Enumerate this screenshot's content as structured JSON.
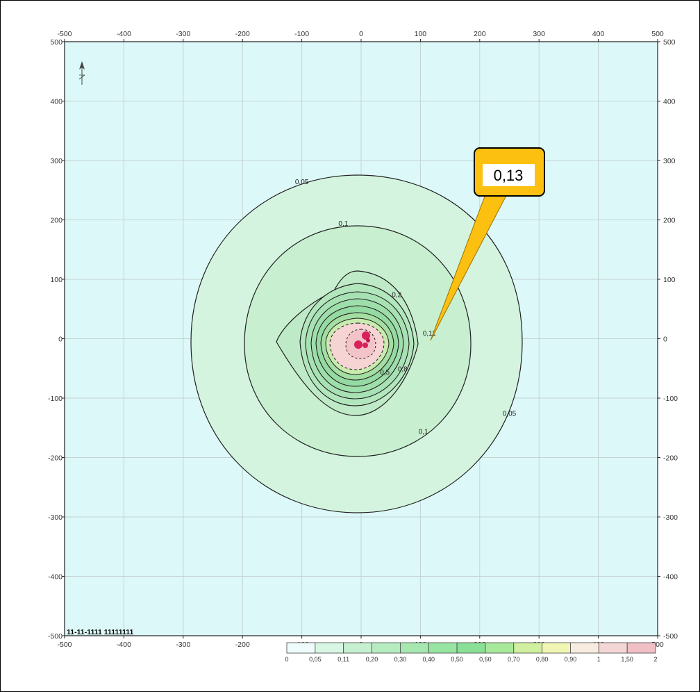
{
  "chart_data": {
    "type": "contour",
    "xlim": [
      -500,
      500
    ],
    "ylim": [
      -500,
      500
    ],
    "x_ticks": [
      "-500",
      "-400",
      "-300",
      "-200",
      "-100",
      "0",
      "100",
      "200",
      "300",
      "400",
      "500"
    ],
    "y_ticks": [
      "500",
      "400",
      "300",
      "200",
      "100",
      "0",
      "-100",
      "-200",
      "-300",
      "-400",
      "-500"
    ],
    "grid": true,
    "contour_labels": [
      {
        "text": "0,05",
        "x": -100,
        "y": 260
      },
      {
        "text": "0,1",
        "x": -30,
        "y": 190
      },
      {
        "text": "0,1",
        "x": 105,
        "y": -160
      },
      {
        "text": "0,05",
        "x": 250,
        "y": -130
      },
      {
        "text": "0,2",
        "x": 60,
        "y": 70
      },
      {
        "text": "0,11",
        "x": 115,
        "y": 5
      },
      {
        "text": "0,5",
        "x": 40,
        "y": -60
      },
      {
        "text": "0,8",
        "x": 70,
        "y": -55
      }
    ],
    "callout": {
      "text": "0,13",
      "x": 118,
      "y": 5
    },
    "stamp_text": "11-11-1111 11111111",
    "legend": {
      "labels": [
        "0",
        "0,05",
        "0,11",
        "0,20",
        "0,30",
        "0,40",
        "0,50",
        "0,60",
        "0,70",
        "0,80",
        "0,90",
        "1",
        "1,50",
        "2"
      ],
      "colors": [
        "#eefcfc",
        "#d8f6e4",
        "#c6f0d0",
        "#b6ecc0",
        "#a6e8b0",
        "#98e4a2",
        "#8ae096",
        "#a8e89a",
        "#d0f0a0",
        "#f2f6b4",
        "#f8ece0",
        "#f4d6d6",
        "#f0c0c6"
      ]
    },
    "colors": {
      "background": "#ddf8f8",
      "outer_fill": "#d4f4e0",
      "mid_fill": "#c8efcf",
      "inner_fill": "#b2e6bc",
      "core_fill": "#f6d4d4",
      "source": "#d8205a",
      "callout_fill": "#fcc010",
      "callout_line": "#f0a800"
    }
  }
}
